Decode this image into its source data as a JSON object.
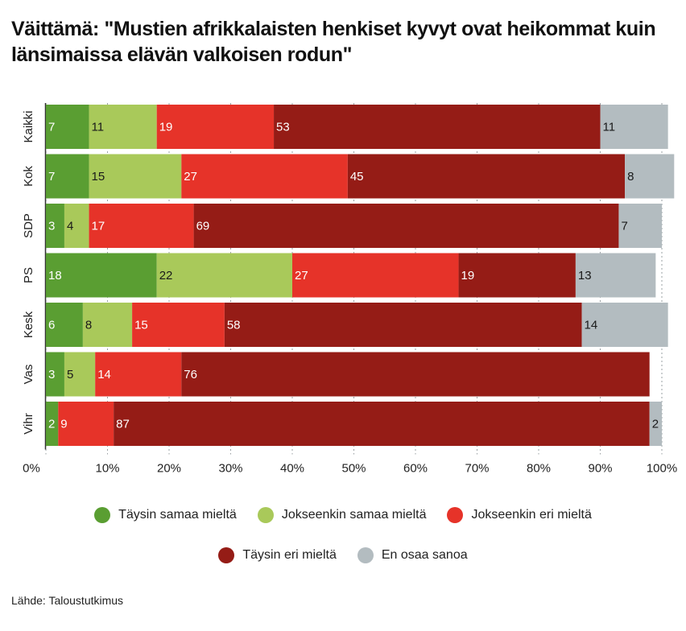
{
  "title": "Väittämä: \"Mustien afrikkalaisten henkiset kyvyt ovat heikommat kuin länsimaissa elävän valkoisen rodun\"",
  "source": "Lähde: Taloustutkimus",
  "chart_data": {
    "type": "bar",
    "orientation": "horizontal",
    "stacked": true,
    "categories": [
      "Kaikki",
      "Kok",
      "SDP",
      "PS",
      "Kesk",
      "Vas",
      "Vihr"
    ],
    "series": [
      {
        "name": "Täysin samaa mieltä",
        "color": "#5a9e32",
        "label_color": "#ffffff",
        "values": [
          7,
          7,
          3,
          18,
          6,
          3,
          2
        ]
      },
      {
        "name": "Jokseenkin samaa mieltä",
        "color": "#a9c95a",
        "label_color": "#1a1a1a",
        "values": [
          11,
          15,
          4,
          22,
          8,
          5,
          0
        ]
      },
      {
        "name": "Jokseenkin eri mieltä",
        "color": "#e63329",
        "label_color": "#ffffff",
        "values": [
          19,
          27,
          17,
          27,
          15,
          14,
          9
        ]
      },
      {
        "name": "Täysin eri mieltä",
        "color": "#951c16",
        "label_color": "#ffffff",
        "values": [
          53,
          45,
          69,
          19,
          58,
          76,
          87
        ]
      },
      {
        "name": "En osaa sanoa",
        "color": "#b3bcc0",
        "label_color": "#1a1a1a",
        "values": [
          11,
          8,
          7,
          13,
          14,
          0,
          2
        ]
      }
    ],
    "ticks": [
      "0%",
      "10%",
      "20%",
      "30%",
      "40%",
      "50%",
      "60%",
      "70%",
      "80%",
      "90%",
      "100%"
    ],
    "xlim": [
      0,
      100
    ],
    "grid": "dashed vertical",
    "legend_position": "bottom"
  }
}
